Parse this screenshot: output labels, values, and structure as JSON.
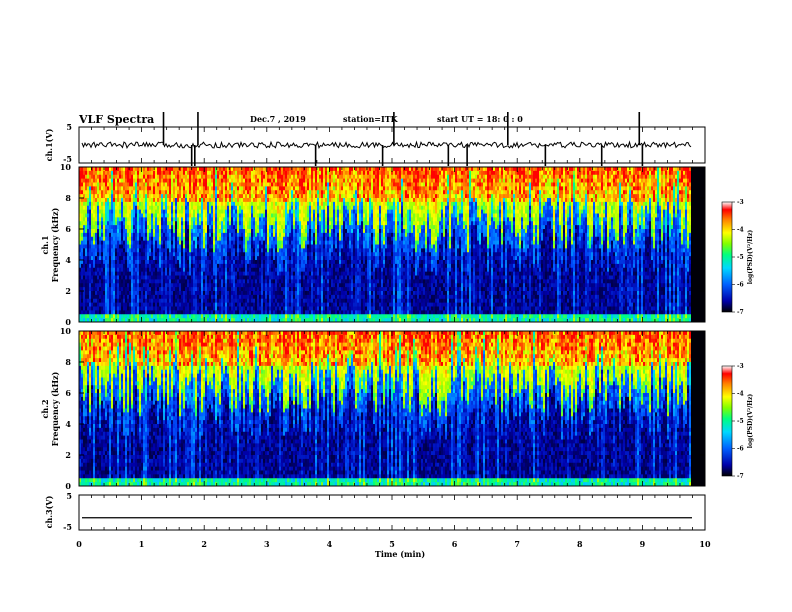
{
  "header": {
    "title": "VLF Spectra",
    "date": "Dec.7 , 2019",
    "station": "station=ITK",
    "start": "start UT = 18: 0 : 0"
  },
  "colors": {
    "colormap": [
      "#000000",
      "#0000aa",
      "#0050ff",
      "#00d0ff",
      "#00ff80",
      "#a0ff00",
      "#ffff00",
      "#ff8000",
      "#ff0000",
      "#ffffff"
    ]
  },
  "chart_data": [
    {
      "type": "line",
      "panel": "ch1-waveform",
      "ylabel": "ch.1(V)",
      "y_ticks": [
        "5",
        "-5"
      ],
      "ylim": [
        -5,
        5
      ],
      "xlim": [
        0,
        10
      ],
      "trace_level": 0,
      "spikes_x": [
        1.35,
        1.8,
        1.85,
        1.9,
        3.78,
        4.85,
        5.03,
        5.9,
        6.2,
        6.85,
        7.45,
        8.35,
        8.95,
        9.0
      ]
    },
    {
      "type": "heatmap",
      "panel": "ch1-spectrogram",
      "ylabel_line1": "ch.1",
      "ylabel_line2": "Frequency (kHz)",
      "y_ticks": [
        "0",
        "2",
        "4",
        "6",
        "8",
        "10"
      ],
      "ylim": [
        0,
        10
      ],
      "xlim": [
        0,
        10
      ],
      "colorbar": {
        "label": "log(PSD)(V²/Hz)",
        "ticks": [
          "-3",
          "-4",
          "-5",
          "-6",
          "-7"
        ],
        "range": [
          -7,
          -3
        ]
      }
    },
    {
      "type": "heatmap",
      "panel": "ch2-spectrogram",
      "ylabel_line1": "ch.2",
      "ylabel_line2": "Frequency (kHz)",
      "y_ticks": [
        "0",
        "2",
        "4",
        "6",
        "8",
        "10"
      ],
      "ylim": [
        0,
        10
      ],
      "xlim": [
        0,
        10
      ],
      "colorbar": {
        "label": "log(PSD)(V²/Hz)",
        "ticks": [
          "-3",
          "-4",
          "-5",
          "-6",
          "-7"
        ],
        "range": [
          -7,
          -3
        ]
      }
    },
    {
      "type": "line",
      "panel": "ch3-waveform",
      "ylabel": "ch.3(V)",
      "y_ticks": [
        "5",
        "-5"
      ],
      "ylim": [
        -5,
        5
      ],
      "xlim": [
        0,
        10
      ],
      "trace_level": -1.5
    }
  ],
  "x_axis": {
    "label": "Time (min)",
    "ticks": [
      "0",
      "1",
      "2",
      "3",
      "4",
      "5",
      "6",
      "7",
      "8",
      "9",
      "10"
    ]
  }
}
